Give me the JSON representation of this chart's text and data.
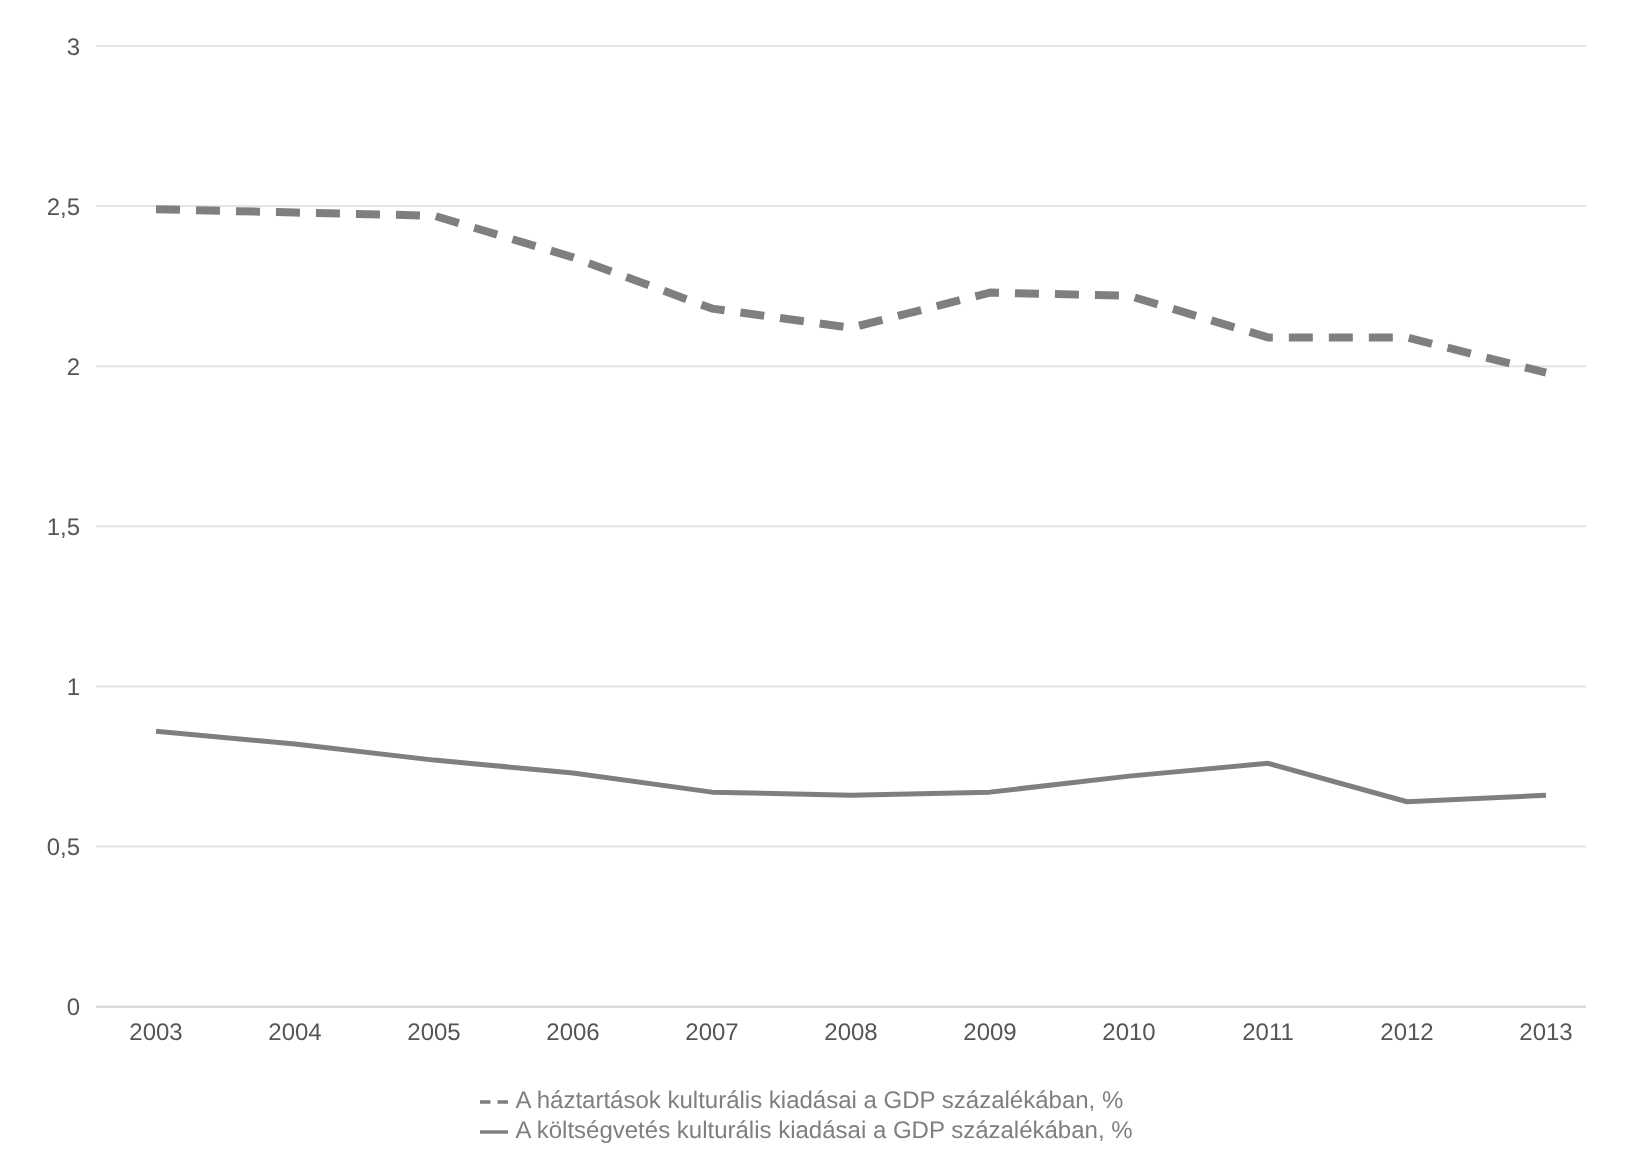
{
  "chart_data": {
    "type": "line",
    "categories": [
      "2003",
      "2004",
      "2005",
      "2006",
      "2007",
      "2008",
      "2009",
      "2010",
      "2011",
      "2012",
      "2013"
    ],
    "series": [
      {
        "name": "A költségvetés kulturális kiadásai a GDP százalékában, %",
        "color": "#7f7f7f",
        "line_style": "solid",
        "values": [
          0.86,
          0.82,
          0.77,
          0.73,
          0.67,
          0.66,
          0.67,
          0.72,
          0.76,
          0.64,
          0.66
        ]
      },
      {
        "name": "A háztartások kulturális kiadásai a GDP százalékában, %",
        "color": "#7f7f7f",
        "line_style": "dashed",
        "values": [
          2.49,
          2.48,
          2.47,
          2.34,
          2.18,
          2.12,
          2.23,
          2.22,
          2.09,
          2.09,
          1.98
        ]
      }
    ],
    "ylim": [
      0,
      3
    ],
    "yticks": [
      {
        "value": 0,
        "label": "0"
      },
      {
        "value": 0.5,
        "label": "0,5"
      },
      {
        "value": 1,
        "label": "1"
      },
      {
        "value": 1.5,
        "label": "1,5"
      },
      {
        "value": 2,
        "label": "2"
      },
      {
        "value": 2.5,
        "label": "2,5"
      },
      {
        "value": 3,
        "label": "3"
      }
    ],
    "grid": "y",
    "legend": "bottom",
    "marker": "none"
  }
}
